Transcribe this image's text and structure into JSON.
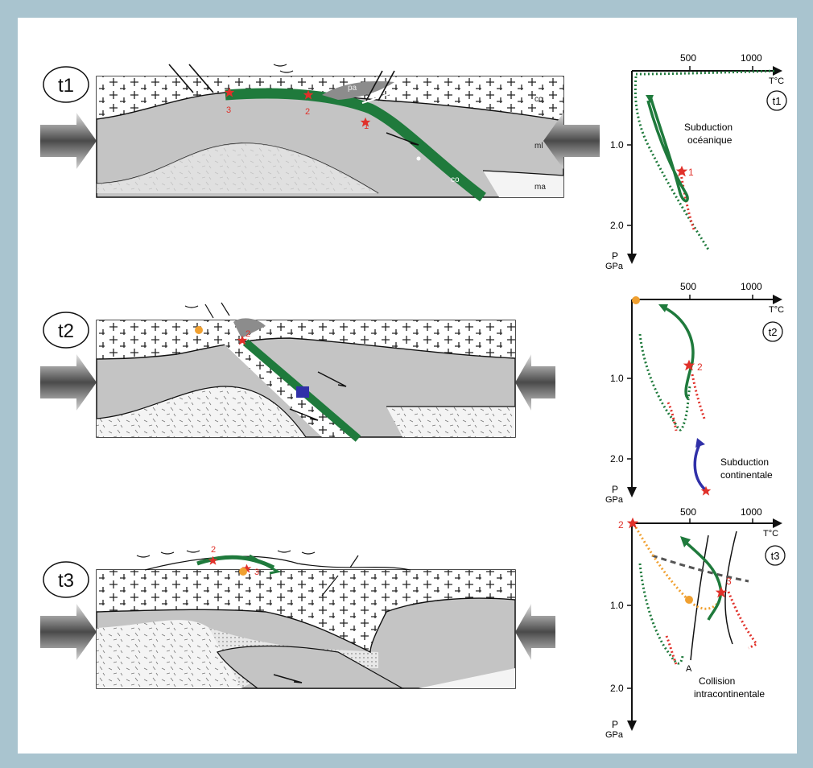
{
  "stages": [
    {
      "id": "t1",
      "label": "t1",
      "pt_label": "t1",
      "caption_lines": [
        "Subduction",
        "océanique"
      ],
      "section_labels": {
        "cc": "cc",
        "ml": "ml",
        "ma": "ma",
        "co": "co",
        "pa": "pa"
      },
      "markers": [
        "1",
        "2",
        "3"
      ]
    },
    {
      "id": "t2",
      "label": "t2",
      "pt_label": "t2",
      "caption_lines": [
        "Subduction",
        "continentale"
      ],
      "markers": [
        "2"
      ]
    },
    {
      "id": "t3",
      "label": "t3",
      "pt_label": "t3",
      "caption_lines": [
        "Collision",
        "intracontinentale"
      ],
      "markers": [
        "2",
        "3"
      ],
      "extra_label": "A"
    }
  ],
  "pt_axes": {
    "temperature_ticks": [
      "500",
      "1000"
    ],
    "temperature_label": "T°C",
    "pressure_ticks": [
      "1.0",
      "2.0"
    ],
    "pressure_label": "P",
    "pressure_unit": "GPa"
  },
  "colors": {
    "background": "#a9c4cf",
    "panel": "#ffffff",
    "mantle_grey": "#c4c4c4",
    "oceanic_crust": "#1f7a3c",
    "marker_red": "#e0312a",
    "path_orange": "#f0a030",
    "path_blue": "#3030a8",
    "path_red_dotted": "#e0312a",
    "path_green_dotted": "#1f7a3c"
  }
}
